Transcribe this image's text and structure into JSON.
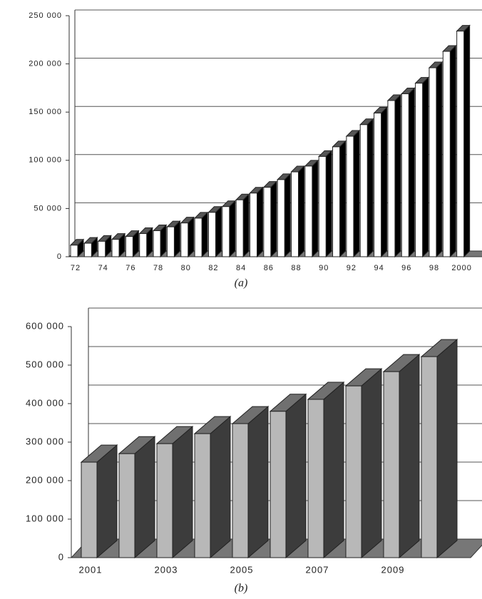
{
  "chart_data": [
    {
      "type": "bar3d",
      "caption": "(a)",
      "categories": [
        "72",
        null,
        "74",
        null,
        "76",
        null,
        "78",
        null,
        "80",
        null,
        "82",
        null,
        "84",
        null,
        "86",
        null,
        "88",
        null,
        "90",
        null,
        "92",
        null,
        "94",
        null,
        "96",
        null,
        "98",
        null,
        "2000"
      ],
      "values": [
        12000,
        14000,
        16000,
        18000,
        21000,
        24000,
        27000,
        31000,
        35000,
        40000,
        46000,
        52000,
        59000,
        66000,
        72000,
        80000,
        88000,
        94000,
        104000,
        114000,
        125000,
        137000,
        149000,
        162000,
        169000,
        180000,
        196000,
        213000,
        234000
      ],
      "color": "#ffffff",
      "side_color": "#000000",
      "top_color": "#555555",
      "ylim": [
        0,
        250000
      ],
      "yticks": [
        0,
        {
          "value": 50000,
          "label": "50 000"
        },
        {
          "value": 100000,
          "label": "100 000"
        },
        {
          "value": 150000,
          "label": "150 000"
        },
        {
          "value": 200000,
          "label": "200 000"
        },
        {
          "value": 250000,
          "label": "250 000"
        }
      ],
      "grid": true
    },
    {
      "type": "bar3d",
      "caption": "(b)",
      "categories": [
        "2001",
        null,
        "2003",
        null,
        "2005",
        null,
        "2007",
        null,
        "2009",
        null
      ],
      "values": [
        248000,
        270000,
        296000,
        322000,
        348000,
        380000,
        411000,
        446000,
        483000,
        522000
      ],
      "color": "#b8b8b8",
      "side_color": "#3c3c3c",
      "top_color": "#707070",
      "ylim": [
        0,
        600000
      ],
      "yticks": [
        0,
        {
          "value": 100000,
          "label": "100 000"
        },
        {
          "value": 200000,
          "label": "200 000"
        },
        {
          "value": 300000,
          "label": "300 000"
        },
        {
          "value": 400000,
          "label": "400 000"
        },
        {
          "value": 500000,
          "label": "500 000"
        },
        {
          "value": 600000,
          "label": "600 000"
        }
      ],
      "grid": true
    }
  ]
}
